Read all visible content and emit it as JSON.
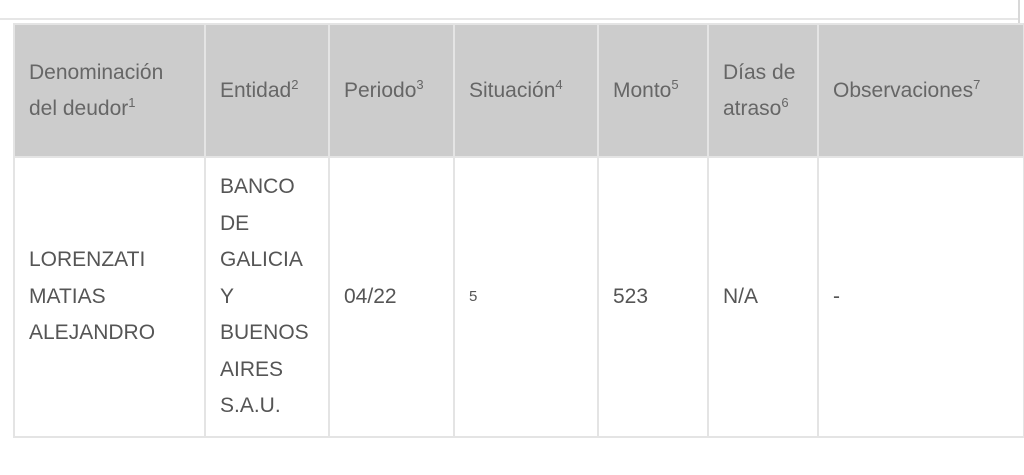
{
  "table": {
    "headers": [
      {
        "label": "Denominación del deudor",
        "note": "1"
      },
      {
        "label": "Entidad",
        "note": "2"
      },
      {
        "label": "Periodo",
        "note": "3"
      },
      {
        "label": "Situación",
        "note": "4"
      },
      {
        "label": "Monto",
        "note": "5"
      },
      {
        "label": "Días de atraso",
        "note": "6"
      },
      {
        "label": "Observaciones",
        "note": "7"
      }
    ],
    "rows": [
      {
        "deudor": "LORENZATI MATIAS ALEJANDRO",
        "entidad": "BANCO DE GALICIA Y BUENOS AIRES S.A.U.",
        "periodo": "04/22",
        "situacion": "5",
        "monto": "523",
        "dias_atraso": "N/A",
        "observaciones": "-"
      }
    ]
  }
}
